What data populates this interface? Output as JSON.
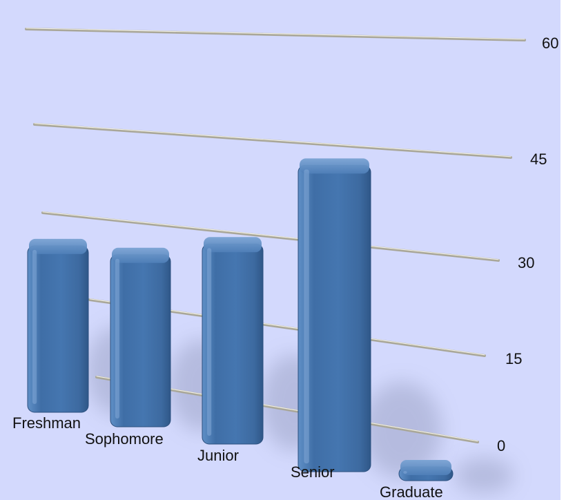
{
  "chart_data": {
    "type": "bar",
    "categories": [
      "Freshman",
      "Sophomore",
      "Junior",
      "Senior",
      "Graduate"
    ],
    "values": [
      31,
      32,
      37,
      56,
      2
    ],
    "yticks": [
      0,
      15,
      30,
      45,
      60
    ],
    "ylim": [
      0,
      60
    ],
    "grid": true,
    "y_axis_position": "right",
    "bar_color": "#4a7ab0",
    "background_color": "#d3d9fd"
  }
}
